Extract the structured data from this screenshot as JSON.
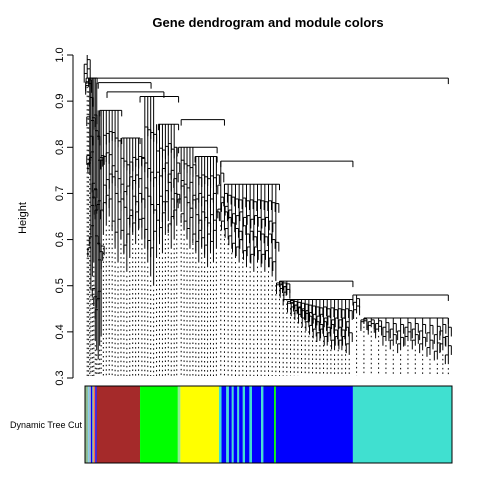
{
  "chart_data": {
    "type": "dendrogram",
    "title": "Gene dendrogram and module colors",
    "ylabel": "Height",
    "xlabel": "",
    "ylim": [
      0.3,
      1.0
    ],
    "y_ticks": [
      0.3,
      0.4,
      0.5,
      0.6,
      0.7,
      0.8,
      0.9,
      1.0
    ],
    "y_tick_labels": [
      "0.3",
      "0.4",
      "0.5",
      "0.6",
      "0.7",
      "0.8",
      "0.9",
      "1.0"
    ],
    "color_bar_label": "Dynamic Tree Cut",
    "modules": [
      {
        "color": "#8fbc8f",
        "start": 0.0,
        "end": 0.008
      },
      {
        "color": "#87ceeb",
        "start": 0.008,
        "end": 0.012
      },
      {
        "color": "#b0b0b0",
        "start": 0.012,
        "end": 0.016
      },
      {
        "color": "#0000ff",
        "start": 0.016,
        "end": 0.02
      },
      {
        "color": "#8fbc8f",
        "start": 0.02,
        "end": 0.024
      },
      {
        "color": "#ff6347",
        "start": 0.024,
        "end": 0.028
      },
      {
        "color": "#0000ff",
        "start": 0.028,
        "end": 0.032
      },
      {
        "color": "#a52a2a",
        "start": 0.032,
        "end": 0.15
      },
      {
        "color": "#00ff00",
        "start": 0.15,
        "end": 0.253
      },
      {
        "color": "#90ee90",
        "start": 0.253,
        "end": 0.26
      },
      {
        "color": "#ffff00",
        "start": 0.26,
        "end": 0.365
      },
      {
        "color": "#40e0d0",
        "start": 0.365,
        "end": 0.372
      },
      {
        "color": "#0000ff",
        "start": 0.372,
        "end": 0.385
      },
      {
        "color": "#40e0d0",
        "start": 0.385,
        "end": 0.392
      },
      {
        "color": "#0000ff",
        "start": 0.392,
        "end": 0.4
      },
      {
        "color": "#40e0d0",
        "start": 0.4,
        "end": 0.405
      },
      {
        "color": "#0000ff",
        "start": 0.405,
        "end": 0.415
      },
      {
        "color": "#40e0d0",
        "start": 0.415,
        "end": 0.42
      },
      {
        "color": "#0000ff",
        "start": 0.42,
        "end": 0.43
      },
      {
        "color": "#40e0d0",
        "start": 0.43,
        "end": 0.436
      },
      {
        "color": "#0000ff",
        "start": 0.436,
        "end": 0.448
      },
      {
        "color": "#40e0d0",
        "start": 0.448,
        "end": 0.455
      },
      {
        "color": "#0000ff",
        "start": 0.455,
        "end": 0.48
      },
      {
        "color": "#40e0d0",
        "start": 0.48,
        "end": 0.486
      },
      {
        "color": "#0000ff",
        "start": 0.486,
        "end": 0.515
      },
      {
        "color": "#00ff00",
        "start": 0.515,
        "end": 0.52
      },
      {
        "color": "#0000ff",
        "start": 0.52,
        "end": 0.73
      },
      {
        "color": "#40e0d0",
        "start": 0.73,
        "end": 1.0
      }
    ],
    "leaf_tips": [
      [
        0.006,
        0.95
      ],
      [
        0.01,
        0.93
      ],
      [
        0.013,
        0.74
      ],
      [
        0.016,
        0.49
      ],
      [
        0.02,
        0.52
      ],
      [
        0.024,
        0.55
      ],
      [
        0.028,
        0.38
      ],
      [
        0.032,
        0.36
      ],
      [
        0.036,
        0.34
      ],
      [
        0.04,
        0.37
      ],
      [
        0.044,
        0.39
      ],
      [
        0.05,
        0.61
      ],
      [
        0.058,
        0.63
      ],
      [
        0.066,
        0.65
      ],
      [
        0.074,
        0.64
      ],
      [
        0.082,
        0.58
      ],
      [
        0.09,
        0.55
      ],
      [
        0.098,
        0.6
      ],
      [
        0.106,
        0.57
      ],
      [
        0.114,
        0.53
      ],
      [
        0.122,
        0.56
      ],
      [
        0.13,
        0.61
      ],
      [
        0.138,
        0.59
      ],
      [
        0.146,
        0.62
      ],
      [
        0.155,
        0.6
      ],
      [
        0.163,
        0.58
      ],
      [
        0.171,
        0.55
      ],
      [
        0.179,
        0.52
      ],
      [
        0.187,
        0.5
      ],
      [
        0.195,
        0.56
      ],
      [
        0.203,
        0.59
      ],
      [
        0.211,
        0.57
      ],
      [
        0.219,
        0.61
      ],
      [
        0.227,
        0.64
      ],
      [
        0.235,
        0.58
      ],
      [
        0.243,
        0.6
      ],
      [
        0.25,
        0.63
      ],
      [
        0.262,
        0.66
      ],
      [
        0.27,
        0.62
      ],
      [
        0.278,
        0.6
      ],
      [
        0.286,
        0.58
      ],
      [
        0.294,
        0.61
      ],
      [
        0.302,
        0.57
      ],
      [
        0.31,
        0.55
      ],
      [
        0.318,
        0.58
      ],
      [
        0.326,
        0.56
      ],
      [
        0.334,
        0.54
      ],
      [
        0.342,
        0.57
      ],
      [
        0.35,
        0.55
      ],
      [
        0.358,
        0.58
      ],
      [
        0.37,
        0.64
      ],
      [
        0.38,
        0.62
      ],
      [
        0.39,
        0.6
      ],
      [
        0.4,
        0.58
      ],
      [
        0.41,
        0.56
      ],
      [
        0.42,
        0.55
      ],
      [
        0.43,
        0.57
      ],
      [
        0.44,
        0.54
      ],
      [
        0.45,
        0.55
      ],
      [
        0.46,
        0.53
      ],
      [
        0.47,
        0.55
      ],
      [
        0.48,
        0.54
      ],
      [
        0.49,
        0.53
      ],
      [
        0.5,
        0.54
      ],
      [
        0.51,
        0.52
      ],
      [
        0.52,
        0.51
      ],
      [
        0.53,
        0.5
      ],
      [
        0.54,
        0.49
      ],
      [
        0.55,
        0.48
      ],
      [
        0.56,
        0.46
      ],
      [
        0.57,
        0.45
      ],
      [
        0.58,
        0.44
      ],
      [
        0.59,
        0.43
      ],
      [
        0.6,
        0.42
      ],
      [
        0.61,
        0.41
      ],
      [
        0.62,
        0.4
      ],
      [
        0.63,
        0.39
      ],
      [
        0.64,
        0.38
      ],
      [
        0.65,
        0.39
      ],
      [
        0.66,
        0.37
      ],
      [
        0.67,
        0.38
      ],
      [
        0.68,
        0.36
      ],
      [
        0.69,
        0.37
      ],
      [
        0.7,
        0.36
      ],
      [
        0.71,
        0.37
      ],
      [
        0.72,
        0.35
      ],
      [
        0.74,
        0.44
      ],
      [
        0.76,
        0.42
      ],
      [
        0.78,
        0.41
      ],
      [
        0.8,
        0.4
      ],
      [
        0.82,
        0.38
      ],
      [
        0.84,
        0.37
      ],
      [
        0.86,
        0.36
      ],
      [
        0.88,
        0.38
      ],
      [
        0.9,
        0.37
      ],
      [
        0.92,
        0.36
      ],
      [
        0.94,
        0.35
      ],
      [
        0.96,
        0.34
      ],
      [
        0.975,
        0.36
      ],
      [
        0.99,
        0.33
      ]
    ],
    "merges": [
      [
        0.003,
        0.99,
        0.95
      ],
      [
        0.01,
        0.033,
        0.95
      ],
      [
        0.036,
        0.18,
        0.94
      ],
      [
        0.06,
        0.215,
        0.92
      ],
      [
        0.15,
        0.255,
        0.91
      ],
      [
        0.255,
        0.36,
        0.8
      ],
      [
        0.262,
        0.38,
        0.86
      ],
      [
        0.37,
        0.73,
        0.77
      ],
      [
        0.38,
        0.53,
        0.72
      ],
      [
        0.53,
        0.73,
        0.51
      ],
      [
        0.54,
        0.73,
        0.47
      ],
      [
        0.73,
        0.99,
        0.48
      ],
      [
        0.76,
        0.99,
        0.43
      ],
      [
        0.04,
        0.1,
        0.88
      ],
      [
        0.1,
        0.15,
        0.82
      ],
      [
        0.2,
        0.255,
        0.85
      ],
      [
        0.3,
        0.36,
        0.78
      ]
    ]
  }
}
